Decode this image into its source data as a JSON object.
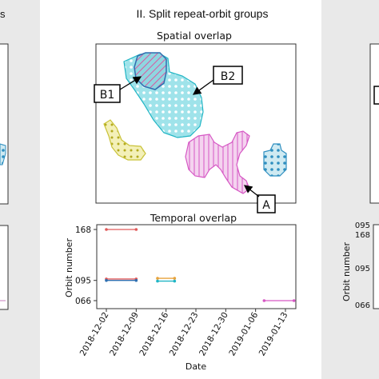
{
  "left_panel": {
    "title_fragment": "s"
  },
  "main_panel": {
    "title": "II. Split repeat-orbit groups"
  },
  "spatial_plot": {
    "title": "Spatial overlap",
    "callouts": [
      {
        "label": "B1"
      },
      {
        "label": "B2"
      },
      {
        "label": "A"
      }
    ]
  },
  "right_panel": {
    "ylabel": "Orbit number",
    "tick_labels": [
      "095",
      "168",
      "095",
      "066"
    ]
  },
  "colors": {
    "blue": "#2f6fb0",
    "cyan": "#20b5c4",
    "pink": "#d657c4",
    "yellow": "#c9c238",
    "red": "#e05a5a",
    "orange": "#e8a23a",
    "gray": "#555555",
    "panel_bg": "#e9e9e9"
  },
  "chart_data": {
    "type": "line",
    "title": "Temporal overlap",
    "xlabel": "Date",
    "ylabel": "Orbit number",
    "x_ticks": [
      "2018-12-02",
      "2018-12-09",
      "2018-12-16",
      "2018-12-23",
      "2018-12-30",
      "2019-01-06",
      "2019-01-13"
    ],
    "y_ticks": [
      "168",
      "095",
      "066"
    ],
    "grid": false,
    "series": [
      {
        "color": "#e05a5a",
        "orbit": 168,
        "x": [
          "2018-12-02",
          "2018-12-09"
        ]
      },
      {
        "color": "#e05a5a",
        "orbit": 97,
        "x": [
          "2018-12-02",
          "2018-12-09"
        ]
      },
      {
        "color": "#2f6fb0",
        "orbit": 95,
        "x": [
          "2018-12-02",
          "2018-12-09"
        ]
      },
      {
        "color": "#e8a23a",
        "orbit": 98,
        "x": [
          "2018-12-14",
          "2018-12-18"
        ]
      },
      {
        "color": "#20b5c4",
        "orbit": 94,
        "x": [
          "2018-12-14",
          "2018-12-18"
        ]
      },
      {
        "color": "#d657c4",
        "orbit": 66,
        "x": [
          "2019-01-08",
          "2019-01-15"
        ]
      }
    ]
  }
}
